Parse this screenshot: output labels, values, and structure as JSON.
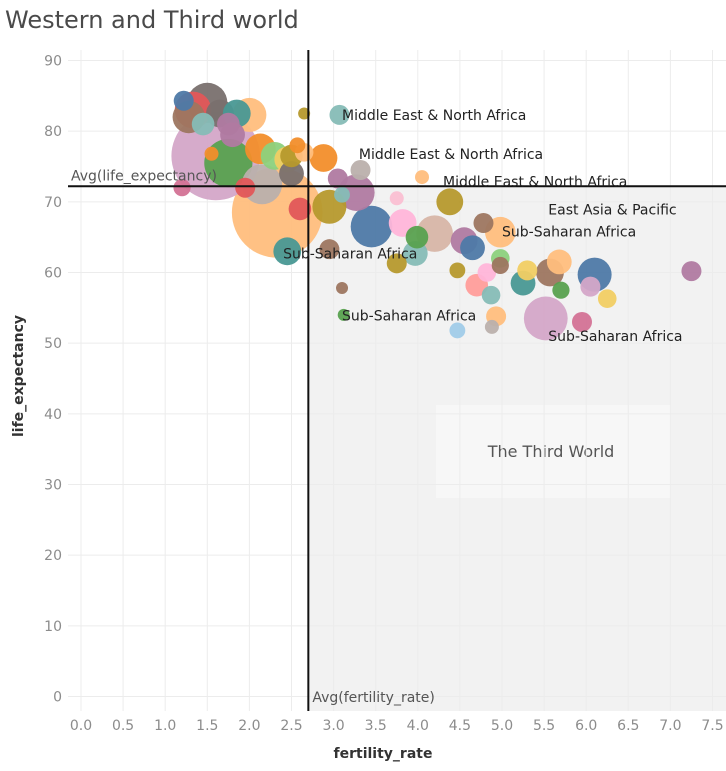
{
  "chart_data": {
    "type": "scatter",
    "title": "Western and Third world",
    "xlabel": "fertility_rate",
    "ylabel": "life_expectancy",
    "xlim": [
      -0.2,
      7.6
    ],
    "ylim": [
      -1.5,
      91
    ],
    "x_ticks": [
      "0.0",
      "0.5",
      "1.0",
      "1.5",
      "2.0",
      "2.5",
      "3.0",
      "3.5",
      "4.0",
      "4.5",
      "5.0",
      "5.5",
      "6.0",
      "6.5",
      "7.0",
      "7.5"
    ],
    "x_tick_values": [
      0,
      0.5,
      1,
      1.5,
      2,
      2.5,
      3,
      3.5,
      4,
      4.5,
      5,
      5.5,
      6,
      6.5,
      7,
      7.5
    ],
    "y_ticks": [
      "0",
      "10",
      "20",
      "30",
      "40",
      "50",
      "60",
      "70",
      "80",
      "90"
    ],
    "y_tick_values": [
      0,
      10,
      20,
      30,
      40,
      50,
      60,
      70,
      80,
      90
    ],
    "reference_lines": {
      "avg_fertility_rate": 2.7,
      "avg_fertility_label": "Avg(fertility_rate)",
      "avg_life_expectancy": 72.2,
      "avg_life_label": "Avg(life_expectancy)"
    },
    "region": {
      "label": "The Third World",
      "x_from": 2.7,
      "y_to": 72.2
    },
    "annotations": [
      {
        "text": "Middle East & North Africa",
        "x": 3.1,
        "y": 82.3
      },
      {
        "text": "Middle East & North Africa",
        "x": 3.3,
        "y": 76.8
      },
      {
        "text": "Middle East & North Africa",
        "x": 4.3,
        "y": 72.9
      },
      {
        "text": "East Asia & Pacific",
        "x": 5.55,
        "y": 68.9
      },
      {
        "text": "Sub-Saharan Africa",
        "x": 5.0,
        "y": 65.8
      },
      {
        "text": "Sub-Saharan Africa",
        "x": 2.4,
        "y": 62.7
      },
      {
        "text": "Sub-Saharan Africa",
        "x": 3.1,
        "y": 53.9
      },
      {
        "text": "Sub-Saharan Africa",
        "x": 5.55,
        "y": 51.0
      }
    ],
    "points": [
      {
        "x": 1.6,
        "y": 76.5,
        "size": 1.25,
        "color": "#d4a6c8"
      },
      {
        "x": 2.33,
        "y": 68.5,
        "size": 1.3,
        "color": "#ffbe7d"
      },
      {
        "x": 1.5,
        "y": 84.0,
        "size": 0.3,
        "color": "#79706e"
      },
      {
        "x": 1.33,
        "y": 83.0,
        "size": 0.25,
        "color": "#e15759"
      },
      {
        "x": 1.28,
        "y": 82.0,
        "size": 0.2,
        "color": "#9d7660"
      },
      {
        "x": 1.65,
        "y": 82.5,
        "size": 0.15,
        "color": "#79706e"
      },
      {
        "x": 1.85,
        "y": 82.5,
        "size": 0.15,
        "color": "#499894"
      },
      {
        "x": 2.0,
        "y": 82.3,
        "size": 0.22,
        "color": "#ffbe7d"
      },
      {
        "x": 1.22,
        "y": 84.3,
        "size": 0.08,
        "color": "#4e79a7"
      },
      {
        "x": 1.45,
        "y": 81.0,
        "size": 0.1,
        "color": "#86bcb6"
      },
      {
        "x": 1.75,
        "y": 81.0,
        "size": 0.1,
        "color": "#b07aa1"
      },
      {
        "x": 1.8,
        "y": 79.5,
        "size": 0.12,
        "color": "#b07aa1"
      },
      {
        "x": 1.75,
        "y": 75.5,
        "size": 0.42,
        "color": "#59a14f"
      },
      {
        "x": 2.13,
        "y": 77.5,
        "size": 0.18,
        "color": "#f28e2b"
      },
      {
        "x": 2.3,
        "y": 76.5,
        "size": 0.15,
        "color": "#8cd17d"
      },
      {
        "x": 2.45,
        "y": 76.0,
        "size": 0.13,
        "color": "#f1ce63"
      },
      {
        "x": 2.5,
        "y": 76.5,
        "size": 0.1,
        "color": "#b6992d"
      },
      {
        "x": 2.57,
        "y": 78.0,
        "size": 0.05,
        "color": "#f28e2b"
      },
      {
        "x": 2.65,
        "y": 77.0,
        "size": 0.07,
        "color": "#ffbe7d"
      },
      {
        "x": 2.5,
        "y": 74.0,
        "size": 0.12,
        "color": "#79706e"
      },
      {
        "x": 2.15,
        "y": 72.5,
        "size": 0.3,
        "color": "#bab0ac"
      },
      {
        "x": 1.95,
        "y": 72.0,
        "size": 0.08,
        "color": "#e15759"
      },
      {
        "x": 1.2,
        "y": 72.0,
        "size": 0.06,
        "color": "#d37295"
      },
      {
        "x": 2.45,
        "y": 63.0,
        "size": 0.15,
        "color": "#499894"
      },
      {
        "x": 2.6,
        "y": 69.0,
        "size": 0.1,
        "color": "#e15759"
      },
      {
        "x": 3.07,
        "y": 82.3,
        "size": 0.08,
        "color": "#86bcb6"
      },
      {
        "x": 2.88,
        "y": 76.2,
        "size": 0.15,
        "color": "#f28e2b"
      },
      {
        "x": 3.05,
        "y": 73.3,
        "size": 0.08,
        "color": "#b07aa1"
      },
      {
        "x": 3.32,
        "y": 74.5,
        "size": 0.08,
        "color": "#bab0ac"
      },
      {
        "x": 3.27,
        "y": 71.3,
        "size": 0.25,
        "color": "#b07aa1"
      },
      {
        "x": 2.95,
        "y": 69.3,
        "size": 0.22,
        "color": "#b6992d"
      },
      {
        "x": 3.1,
        "y": 71.0,
        "size": 0.05,
        "color": "#86bcb6"
      },
      {
        "x": 3.45,
        "y": 66.5,
        "size": 0.32,
        "color": "#4e79a7"
      },
      {
        "x": 2.95,
        "y": 63.3,
        "size": 0.08,
        "color": "#9d7660"
      },
      {
        "x": 3.82,
        "y": 67.0,
        "size": 0.15,
        "color": "#ffb5d9"
      },
      {
        "x": 3.99,
        "y": 65.0,
        "size": 0.1,
        "color": "#59a14f"
      },
      {
        "x": 4.2,
        "y": 65.5,
        "size": 0.25,
        "color": "#d7b5a6"
      },
      {
        "x": 4.38,
        "y": 70.0,
        "size": 0.14,
        "color": "#b6992d"
      },
      {
        "x": 4.55,
        "y": 64.5,
        "size": 0.14,
        "color": "#b07aa1"
      },
      {
        "x": 4.65,
        "y": 63.5,
        "size": 0.12,
        "color": "#4e79a7"
      },
      {
        "x": 4.78,
        "y": 67.0,
        "size": 0.08,
        "color": "#9d7660"
      },
      {
        "x": 4.98,
        "y": 65.7,
        "size": 0.18,
        "color": "#ffbe7d"
      },
      {
        "x": 3.97,
        "y": 62.7,
        "size": 0.12,
        "color": "#86bcb6"
      },
      {
        "x": 3.75,
        "y": 61.3,
        "size": 0.08,
        "color": "#b6992d"
      },
      {
        "x": 4.47,
        "y": 60.3,
        "size": 0.05,
        "color": "#b6992d"
      },
      {
        "x": 4.82,
        "y": 60.0,
        "size": 0.07,
        "color": "#ffb5d9"
      },
      {
        "x": 4.98,
        "y": 62.0,
        "size": 0.07,
        "color": "#8cd17d"
      },
      {
        "x": 4.98,
        "y": 61.0,
        "size": 0.06,
        "color": "#9d7660"
      },
      {
        "x": 4.7,
        "y": 58.2,
        "size": 0.1,
        "color": "#ff9d9a"
      },
      {
        "x": 4.87,
        "y": 56.8,
        "size": 0.07,
        "color": "#86bcb6"
      },
      {
        "x": 5.3,
        "y": 60.3,
        "size": 0.08,
        "color": "#f1ce63"
      },
      {
        "x": 5.57,
        "y": 60.0,
        "size": 0.15,
        "color": "#9d7660"
      },
      {
        "x": 5.68,
        "y": 61.5,
        "size": 0.12,
        "color": "#ffbe7d"
      },
      {
        "x": 5.25,
        "y": 58.5,
        "size": 0.12,
        "color": "#499894"
      },
      {
        "x": 5.7,
        "y": 57.5,
        "size": 0.06,
        "color": "#59a14f"
      },
      {
        "x": 6.1,
        "y": 59.7,
        "size": 0.22,
        "color": "#4e79a7"
      },
      {
        "x": 6.05,
        "y": 58.0,
        "size": 0.08,
        "color": "#d4a6c8"
      },
      {
        "x": 6.25,
        "y": 56.3,
        "size": 0.07,
        "color": "#f1ce63"
      },
      {
        "x": 7.25,
        "y": 60.2,
        "size": 0.08,
        "color": "#b07aa1"
      },
      {
        "x": 5.52,
        "y": 53.5,
        "size": 0.35,
        "color": "#d4a6c8"
      },
      {
        "x": 5.95,
        "y": 53.0,
        "size": 0.08,
        "color": "#d37295"
      },
      {
        "x": 4.93,
        "y": 53.8,
        "size": 0.08,
        "color": "#ffbe7d"
      },
      {
        "x": 4.47,
        "y": 51.8,
        "size": 0.05,
        "color": "#a0cbe8"
      },
      {
        "x": 4.88,
        "y": 52.3,
        "size": 0.04,
        "color": "#bab0ac"
      },
      {
        "x": 3.1,
        "y": 57.8,
        "size": 0.03,
        "color": "#9d7660"
      },
      {
        "x": 3.12,
        "y": 54.0,
        "size": 0.03,
        "color": "#59a14f"
      },
      {
        "x": 4.05,
        "y": 73.5,
        "size": 0.04,
        "color": "#ffbe7d"
      },
      {
        "x": 3.75,
        "y": 70.5,
        "size": 0.04,
        "color": "#fabfd2"
      },
      {
        "x": 2.65,
        "y": 82.5,
        "size": 0.03,
        "color": "#b6992d"
      },
      {
        "x": 1.55,
        "y": 76.8,
        "size": 0.04,
        "color": "#f28e2b"
      }
    ]
  }
}
